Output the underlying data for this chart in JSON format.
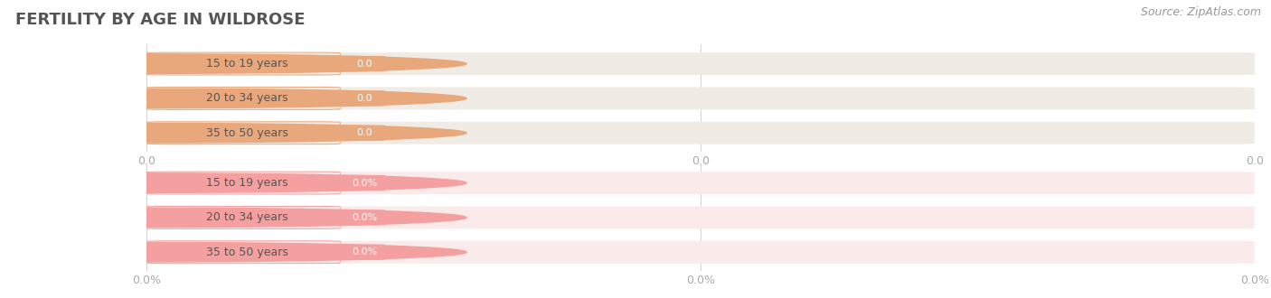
{
  "title": "FERTILITY BY AGE IN WILDROSE",
  "source": "Source: ZipAtlas.com",
  "title_color": "#555555",
  "title_fontsize": 13,
  "background_color": "#ffffff",
  "label_color": "#555555",
  "groups": [
    {
      "labels": [
        "15 to 19 years",
        "20 to 34 years",
        "35 to 50 years"
      ],
      "values": [
        0.0,
        0.0,
        0.0
      ],
      "bar_color": "#e8a87c",
      "bar_bg_color": "#f0ebe4",
      "value_suffix": "",
      "x_tick_labels": [
        "0.0",
        "0.0",
        "0.0"
      ]
    },
    {
      "labels": [
        "15 to 19 years",
        "20 to 34 years",
        "35 to 50 years"
      ],
      "values": [
        0.0,
        0.0,
        0.0
      ],
      "bar_color": "#f4a0a0",
      "bar_bg_color": "#faeaea",
      "value_suffix": "%",
      "x_tick_labels": [
        "0.0%",
        "0.0%",
        "0.0%"
      ]
    }
  ],
  "label_fontsize": 9.0,
  "value_fontsize": 8.0,
  "tick_fontsize": 9,
  "source_fontsize": 9,
  "source_color": "#999999",
  "source_style": "italic"
}
